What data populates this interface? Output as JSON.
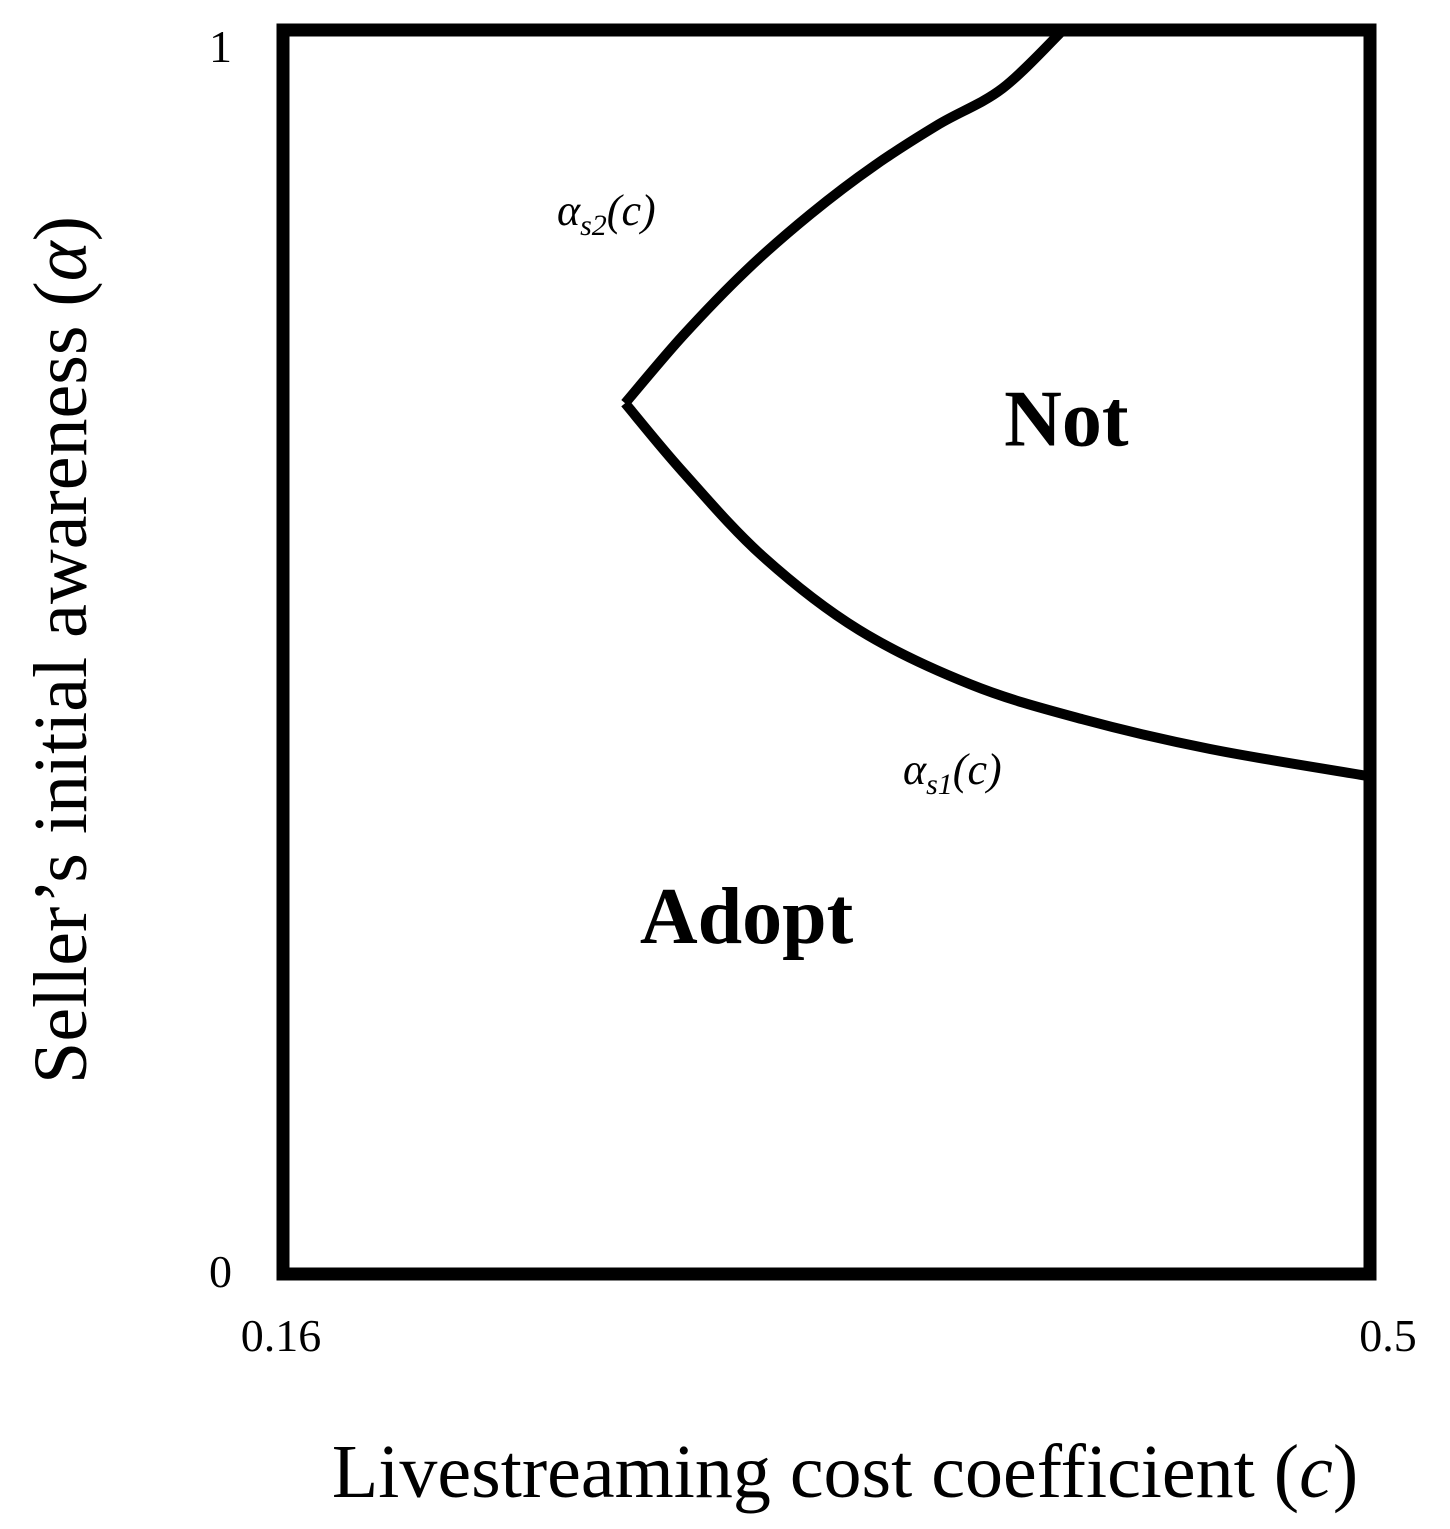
{
  "chart_data": {
    "type": "line",
    "title": "",
    "xlabel": "Livestreaming cost coefficient",
    "xlabel_symbol": "c",
    "ylabel": "Seller’s initial awareness",
    "ylabel_symbol": "α",
    "xlim": [
      0.16,
      0.5
    ],
    "ylim": [
      0,
      1
    ],
    "x_tick_labels": [
      "0.16",
      "0.5"
    ],
    "y_tick_labels": [
      "0",
      "1"
    ],
    "grid": false,
    "series": [
      {
        "name": "α_s2(c)",
        "label_main": "α",
        "label_sub": "s2",
        "label_arg": "(c)",
        "x": [
          0.267,
          0.285,
          0.305,
          0.325,
          0.345,
          0.365,
          0.385,
          0.404
        ],
        "y": [
          0.7,
          0.754,
          0.807,
          0.852,
          0.891,
          0.924,
          0.953,
          1.0
        ]
      },
      {
        "name": "α_s1(c)",
        "label_main": "α",
        "label_sub": "s1",
        "label_arg": "(c)",
        "x": [
          0.267,
          0.285,
          0.31,
          0.34,
          0.375,
          0.41,
          0.45,
          0.5
        ],
        "y": [
          0.7,
          0.645,
          0.577,
          0.518,
          0.474,
          0.446,
          0.422,
          0.4
        ]
      }
    ],
    "regions": [
      {
        "label": "Not",
        "x": 0.405,
        "y": 0.69
      },
      {
        "label": "Adopt",
        "x": 0.305,
        "y": 0.29
      }
    ]
  }
}
